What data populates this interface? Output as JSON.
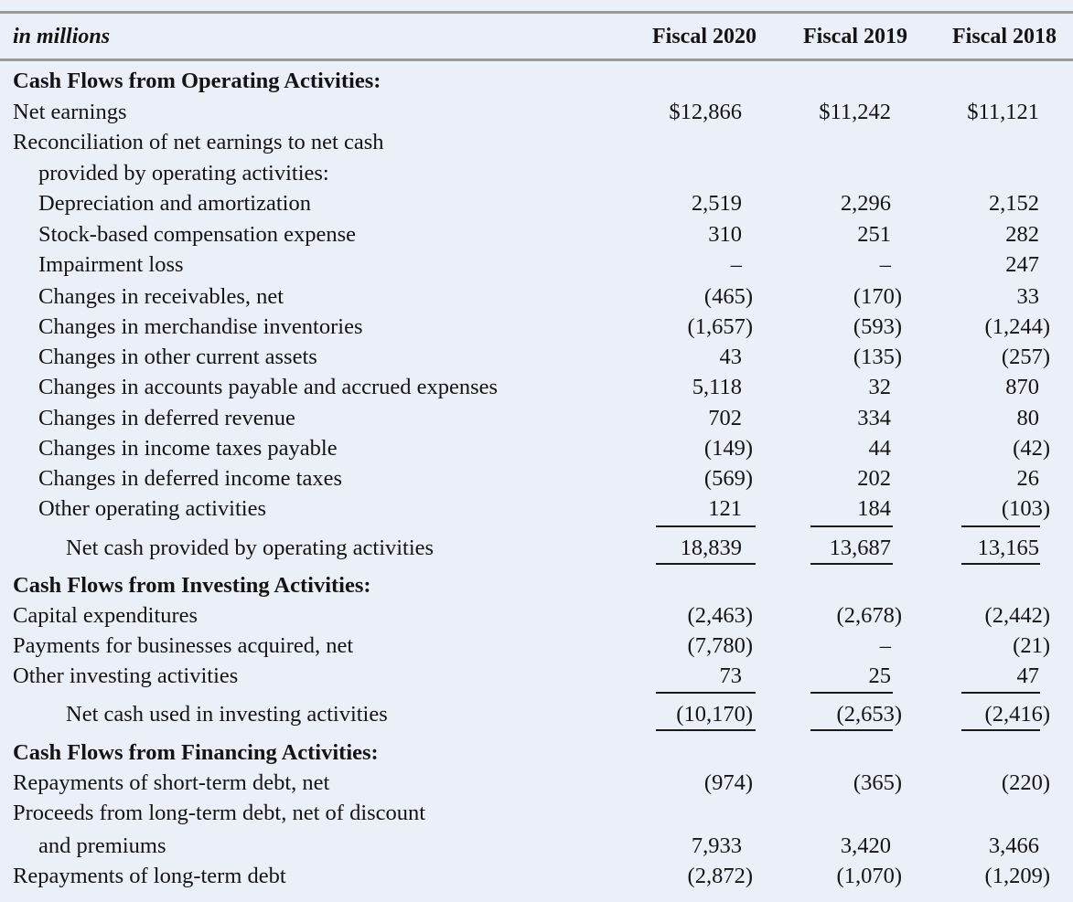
{
  "header": {
    "label": "in millions",
    "columns": [
      "Fiscal 2020",
      "Fiscal 2019",
      "Fiscal 2018"
    ]
  },
  "rows": [
    {
      "label": "Cash Flows from Operating Activities:",
      "indent": 0,
      "section": true,
      "values": [
        "",
        "",
        ""
      ]
    },
    {
      "label": "Net earnings",
      "indent": 0,
      "values": [
        "$12,866",
        "$11,242",
        "$11,121"
      ]
    },
    {
      "label": "Reconciliation of net earnings to net cash",
      "indent": 0,
      "values": [
        "",
        "",
        ""
      ]
    },
    {
      "label": "provided by operating activities:",
      "indent": 1,
      "values": [
        "",
        "",
        ""
      ]
    },
    {
      "label": "Depreciation and amortization",
      "indent": 1,
      "values": [
        "2,519",
        "2,296",
        "2,152"
      ]
    },
    {
      "label": "Stock-based compensation expense",
      "indent": 1,
      "values": [
        "310",
        "251",
        "282"
      ]
    },
    {
      "label": "Impairment loss",
      "indent": 1,
      "values": [
        "–",
        "–",
        "247"
      ]
    },
    {
      "label": "Changes in receivables, net",
      "indent": 1,
      "values": [
        "(465)",
        "(170)",
        "33"
      ]
    },
    {
      "label": "Changes in merchandise inventories",
      "indent": 1,
      "values": [
        "(1,657)",
        "(593)",
        "(1,244)"
      ]
    },
    {
      "label": "Changes in other current assets",
      "indent": 1,
      "values": [
        "43",
        "(135)",
        "(257)"
      ]
    },
    {
      "label": "Changes in accounts payable and accrued expenses",
      "indent": 1,
      "values": [
        "5,118",
        "32",
        "870"
      ]
    },
    {
      "label": "Changes in deferred revenue",
      "indent": 1,
      "values": [
        "702",
        "334",
        "80"
      ]
    },
    {
      "label": "Changes in income taxes payable",
      "indent": 1,
      "values": [
        "(149)",
        "44",
        "(42)"
      ]
    },
    {
      "label": "Changes in deferred income taxes",
      "indent": 1,
      "values": [
        "(569)",
        "202",
        "26"
      ]
    },
    {
      "label": "Other operating activities",
      "indent": 1,
      "values": [
        "121",
        "184",
        "(103)"
      ]
    },
    {
      "label": "Net cash provided by operating activities",
      "indent": 2,
      "total": true,
      "values": [
        "18,839",
        "13,687",
        "13,165"
      ]
    },
    {
      "label": "Cash Flows from Investing Activities:",
      "indent": 0,
      "section": true,
      "values": [
        "",
        "",
        ""
      ]
    },
    {
      "label": "Capital expenditures",
      "indent": 0,
      "values": [
        "(2,463)",
        "(2,678)",
        "(2,442)"
      ]
    },
    {
      "label": "Payments for businesses acquired, net",
      "indent": 0,
      "values": [
        "(7,780)",
        "–",
        "(21)"
      ]
    },
    {
      "label": "Other investing activities",
      "indent": 0,
      "values": [
        "73",
        "25",
        "47"
      ]
    },
    {
      "label": "Net cash used in investing activities",
      "indent": 2,
      "total": true,
      "values": [
        "(10,170)",
        "(2,653)",
        "(2,416)"
      ]
    },
    {
      "label": "Cash Flows from Financing Activities:",
      "indent": 0,
      "section": true,
      "values": [
        "",
        "",
        ""
      ]
    },
    {
      "label": "Repayments of short-term debt, net",
      "indent": 0,
      "values": [
        "(974)",
        "(365)",
        "(220)"
      ]
    },
    {
      "label": "Proceeds from long-term debt, net of discount",
      "indent": 0,
      "values": [
        "",
        "",
        ""
      ]
    },
    {
      "label": "and premiums",
      "indent": 1,
      "values": [
        "7,933",
        "3,420",
        "3,466"
      ]
    },
    {
      "label": "Repayments of long-term debt",
      "indent": 0,
      "values": [
        "(2,872)",
        "(1,070)",
        "(1,209)"
      ]
    }
  ]
}
